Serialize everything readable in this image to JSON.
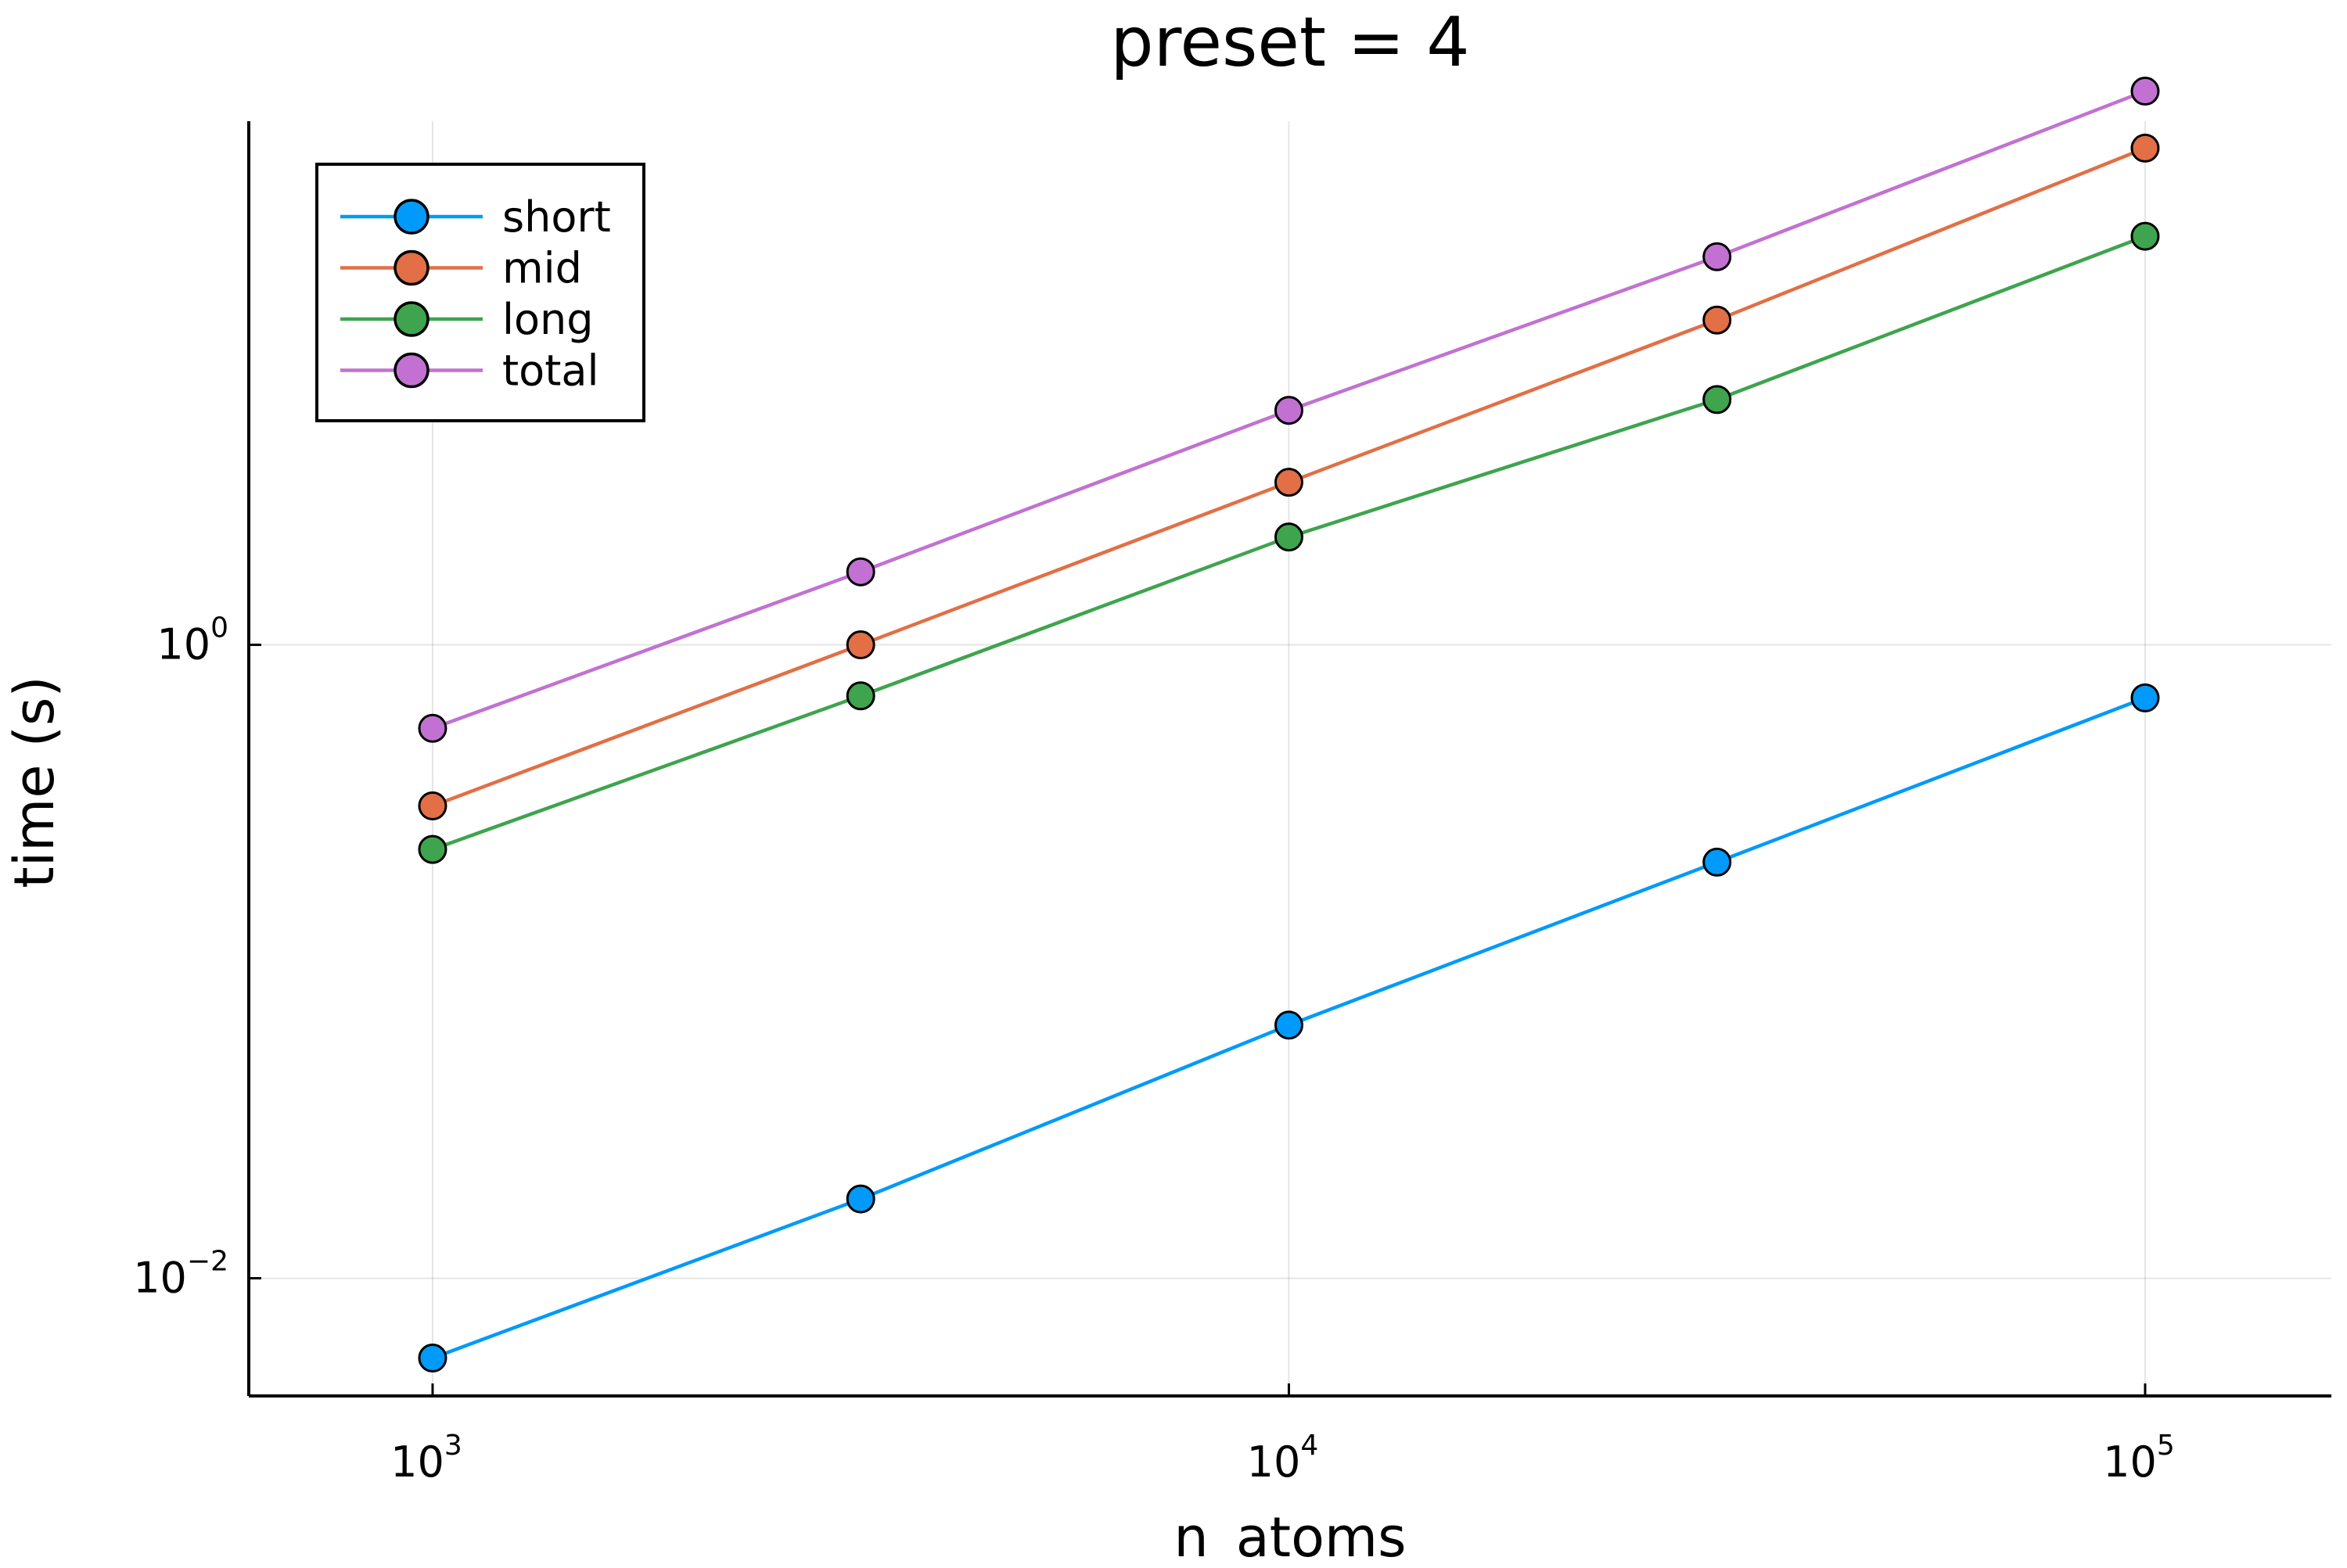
{
  "chart_data": {
    "type": "line",
    "title": "preset = 4",
    "xlabel": "n_atoms",
    "ylabel": "time (s)",
    "x_scale": "log",
    "y_scale": "log",
    "xlim": [
      610,
      165000
    ],
    "ylim": [
      0.00425,
      45
    ],
    "grid": true,
    "legend_position": "top-left",
    "x_ticks": [
      {
        "value": 1000,
        "base": "10",
        "exp": "3"
      },
      {
        "value": 10000,
        "base": "10",
        "exp": "4"
      },
      {
        "value": 100000,
        "base": "10",
        "exp": "5"
      }
    ],
    "y_ticks": [
      {
        "value": 0.01,
        "base": "10",
        "exp": "−2"
      },
      {
        "value": 1,
        "base": "10",
        "exp": "0"
      }
    ],
    "x": [
      1000,
      3162,
      10000,
      31623,
      100000
    ],
    "series": [
      {
        "name": "short",
        "color": "#009AFA",
        "values": [
          0.0056,
          0.0178,
          0.063,
          0.206,
          0.68
        ]
      },
      {
        "name": "mid",
        "color": "#E26F46",
        "values": [
          0.31,
          1.0,
          3.26,
          10.6,
          37.0
        ]
      },
      {
        "name": "long",
        "color": "#3EA44E",
        "values": [
          0.226,
          0.69,
          2.19,
          5.95,
          19.5
        ]
      },
      {
        "name": "total",
        "color": "#C271D2",
        "values": [
          0.545,
          1.7,
          5.5,
          16.8,
          56.0
        ]
      }
    ]
  }
}
